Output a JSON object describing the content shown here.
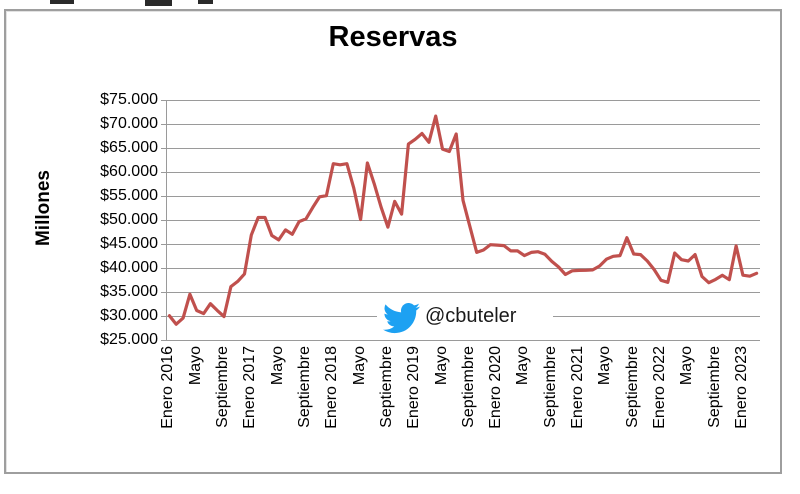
{
  "chart": {
    "frame_border_color": "#9e9e9e",
    "background": "#ffffff",
    "watermark": {
      "icon": "twitter-bird-icon",
      "icon_color": "#1da1f2",
      "handle": "@cbuteler",
      "text_color": "#1a1a1a"
    }
  },
  "chart_data": {
    "type": "line",
    "title": "Reservas",
    "xlabel": "",
    "ylabel": "Millones",
    "ylim": [
      25000,
      75000
    ],
    "ytick_step": 5000,
    "grid": true,
    "legend": false,
    "line_color": "#c0504d",
    "gridline_color": "#9a9a9a",
    "axis_color": "#9a9a9a",
    "frequency": "monthly",
    "x_start": "Enero 2016",
    "x_end": "Marzo 2023",
    "ytick_labels": [
      "$75.000",
      "$70.000",
      "$65.000",
      "$60.000",
      "$55.000",
      "$50.000",
      "$45.000",
      "$40.000",
      "$35.000",
      "$30.000",
      "$25.000"
    ],
    "x_tick_labels": [
      "Enero 2016",
      "Mayo",
      "Septiembre",
      "Enero 2017",
      "Mayo",
      "Septiembre",
      "Enero 2018",
      "Mayo",
      "Septiembre",
      "Enero 2019",
      "Mayo",
      "Septiembre",
      "Enero 2020",
      "Mayo",
      "Septiembre",
      "Enero 2021",
      "Mayo",
      "Septiembre",
      "Enero 2022",
      "Mayo",
      "Septiembre",
      "Enero 2023"
    ],
    "x_tick_every": 4,
    "series": [
      {
        "name": "Reservas",
        "values": [
          30071,
          28302,
          29572,
          34532,
          31136,
          30507,
          32560,
          31177,
          29902,
          36122,
          37217,
          38772,
          46857,
          50517,
          50522,
          46764,
          45861,
          47932,
          47011,
          49667,
          50253,
          52618,
          54836,
          55055,
          61730,
          61509,
          61726,
          56623,
          50098,
          61881,
          57566,
          52677,
          48518,
          53866,
          51229,
          65806,
          66811,
          68014,
          66187,
          71655,
          64779,
          64278,
          67914,
          54098,
          48703,
          43260,
          43746,
          44848,
          44771,
          44662,
          43561,
          43568,
          42589,
          43243,
          43388,
          42846,
          41379,
          40206,
          38652,
          39410,
          39508,
          39518,
          39596,
          40418,
          41828,
          42438,
          42587,
          46318,
          42911,
          42787,
          41461,
          39662,
          37442,
          37018,
          43122,
          41739,
          41467,
          42784,
          38227,
          36930,
          37625,
          38479,
          37562,
          44598,
          38500,
          38300,
          38900
        ]
      }
    ]
  }
}
